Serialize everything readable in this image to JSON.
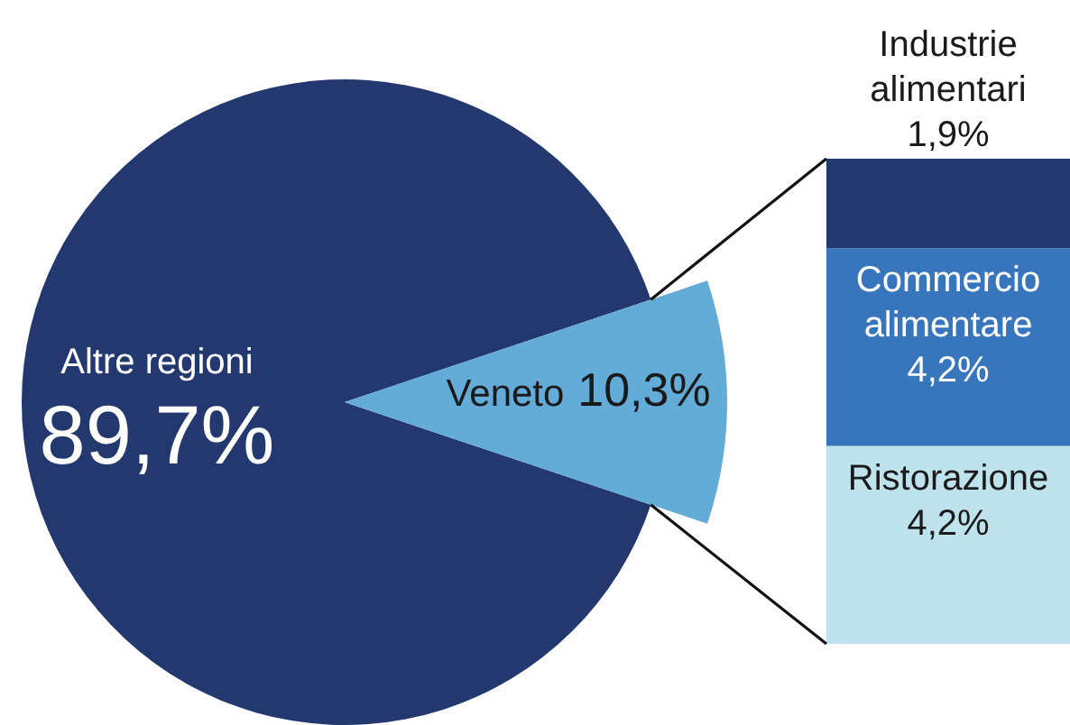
{
  "chart_data": [
    {
      "type": "pie",
      "categories": [
        "Altre regioni",
        "Veneto"
      ],
      "values": [
        89.7,
        10.3
      ],
      "colors": [
        "#22386f",
        "#63acd8"
      ],
      "value_labels": [
        "89,7%",
        "10,3%"
      ]
    },
    {
      "type": "bar",
      "stacked": true,
      "categories": [
        null
      ],
      "series": [
        {
          "name": "Ristorazione",
          "color": "#bee3ec",
          "values": [
            4.2
          ],
          "value_labels": [
            "4,2%"
          ]
        },
        {
          "name": "Commercio alimentare",
          "color": "#3776bc",
          "values": [
            4.2
          ],
          "value_labels": [
            "4,2%"
          ]
        },
        {
          "name": "Industrie alimentari",
          "color": "#22386f",
          "values": [
            1.9
          ],
          "value_labels": [
            "1,9%"
          ]
        }
      ]
    }
  ]
}
